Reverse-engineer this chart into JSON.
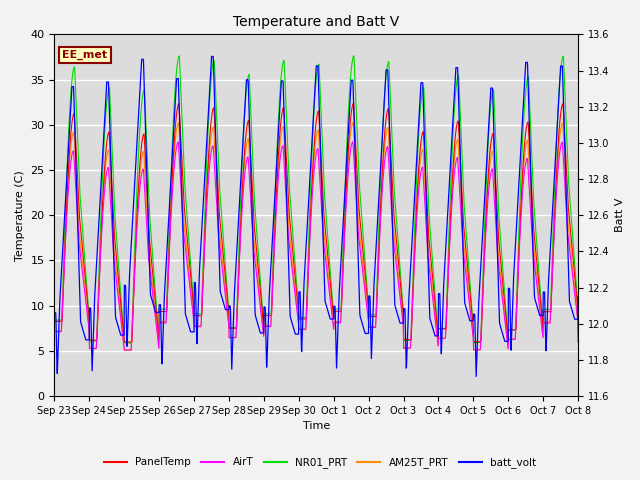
{
  "title": "Temperature and Batt V",
  "xlabel": "Time",
  "ylabel_left": "Temperature (C)",
  "ylabel_right": "Batt V",
  "annotation": "EE_met",
  "ylim_left": [
    0,
    40
  ],
  "ylim_right": [
    11.6,
    13.6
  ],
  "x_tick_labels": [
    "Sep 23",
    "Sep 24",
    "Sep 25",
    "Sep 26",
    "Sep 27",
    "Sep 28",
    "Sep 29",
    "Sep 30",
    "Oct 1",
    "Oct 2",
    "Oct 3",
    "Oct 4",
    "Oct 5",
    "Oct 6",
    "Oct 7",
    "Oct 8"
  ],
  "yticks_left": [
    0,
    5,
    10,
    15,
    20,
    25,
    30,
    35,
    40
  ],
  "yticks_right": [
    11.6,
    11.8,
    12.0,
    12.2,
    12.4,
    12.6,
    12.8,
    13.0,
    13.2,
    13.4,
    13.6
  ],
  "colors": {
    "PanelTemp": "#FF0000",
    "AirT": "#FF00FF",
    "NR01_PRT": "#00DD00",
    "AM25T_PRT": "#FF8C00",
    "batt_volt": "#0000FF"
  },
  "legend_labels": [
    "PanelTemp",
    "AirT",
    "NR01_PRT",
    "AM25T_PRT",
    "batt_volt"
  ],
  "bg_color": "#DCDCDC",
  "grid_color": "#FFFFFF",
  "n_days": 15,
  "figsize": [
    6.4,
    4.8
  ],
  "dpi": 100
}
